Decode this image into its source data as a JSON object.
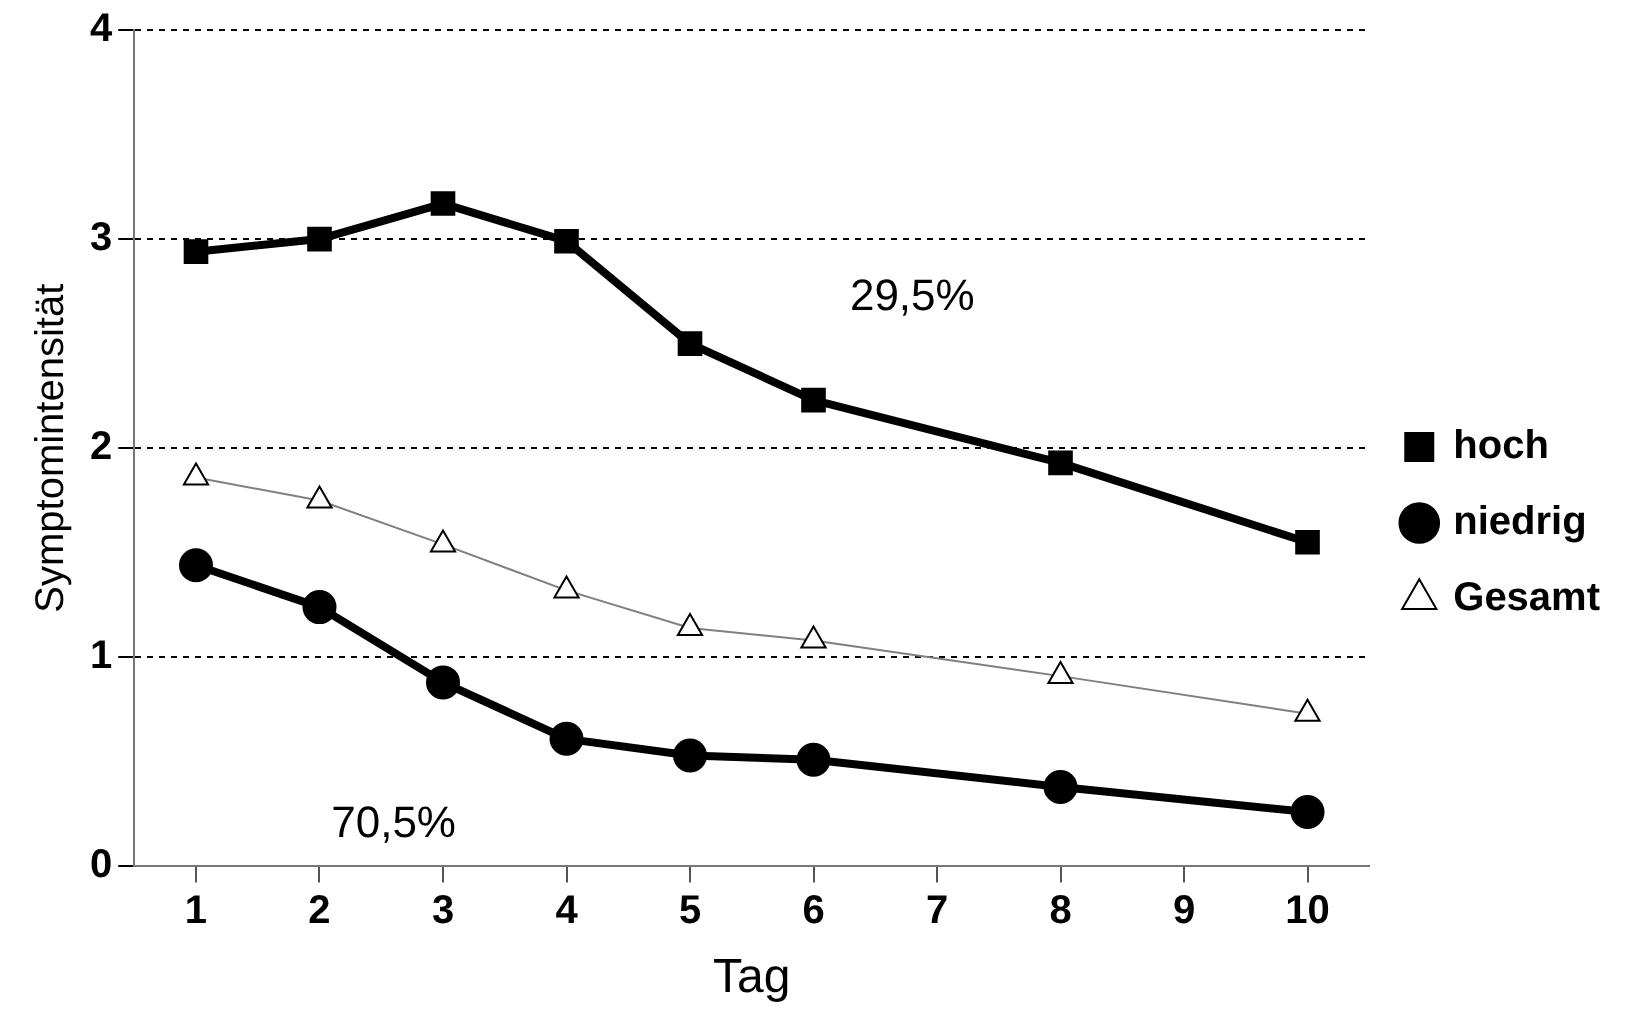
{
  "chart_data": {
    "type": "line",
    "xlabel": "Tag",
    "ylabel": "Symptomintensität",
    "x": [
      1,
      2,
      3,
      4,
      5,
      6,
      8,
      10
    ],
    "series": [
      {
        "name": "hoch",
        "color": "#000000",
        "marker": "square",
        "values": [
          2.94,
          3.0,
          3.17,
          2.99,
          2.5,
          2.23,
          1.93,
          1.55
        ]
      },
      {
        "name": "niedrig",
        "color": "#000000",
        "marker": "circle",
        "values": [
          1.44,
          1.24,
          0.88,
          0.61,
          0.53,
          0.51,
          0.38,
          0.26
        ]
      },
      {
        "name": "Gesamt",
        "color": "#7f7f7f",
        "marker": "triangle",
        "values": [
          1.86,
          1.75,
          1.54,
          1.32,
          1.14,
          1.08,
          0.91,
          0.73
        ]
      }
    ],
    "xlim": [
      0.5,
      10.5
    ],
    "xticks": [
      1,
      2,
      3,
      4,
      5,
      6,
      7,
      8,
      9,
      10
    ],
    "ylim": [
      0,
      4
    ],
    "yticks": [
      0,
      1,
      2,
      3,
      4
    ],
    "grid": "y",
    "legend": "right",
    "line_style": "solid",
    "annotations": [
      "29,5%",
      "70,5%"
    ]
  }
}
